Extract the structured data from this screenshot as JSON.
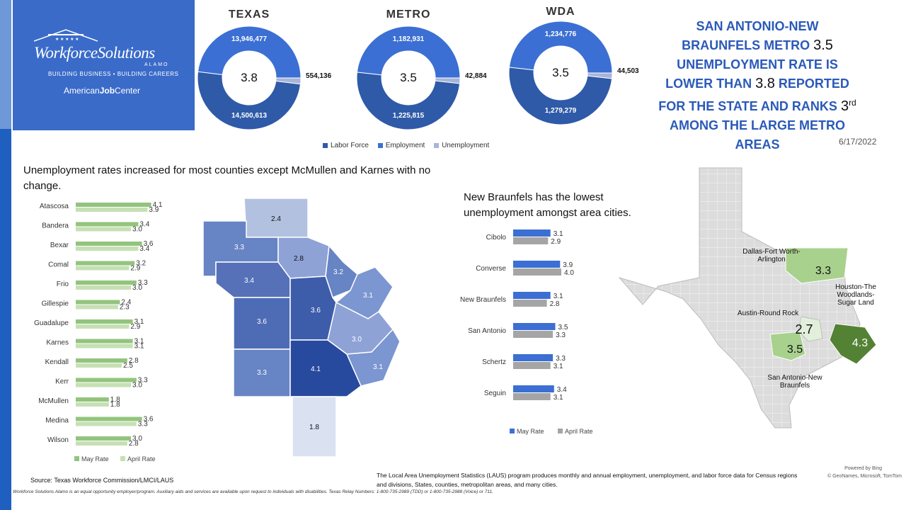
{
  "logo": {
    "name": "WorkforceSolutions",
    "sub": "ALAMO",
    "tagline": "BUILDING BUSINESS • BUILDING CAREERS",
    "ajc_prefix": "American",
    "ajc_bold": "Job",
    "ajc_suffix": "Center"
  },
  "donuts": {
    "legend": [
      "Labor Force",
      "Employment",
      "Unemployment"
    ],
    "colors": {
      "labor_force": "#2e5aa8",
      "employment": "#3b6fd3",
      "unemployment": "#a8b4d9"
    },
    "items": [
      {
        "title": "TEXAS",
        "rate": "3.8",
        "employment": "13,946,477",
        "labor_force": "14,500,613",
        "unemployment": "554,136"
      },
      {
        "title": "METRO",
        "rate": "3.5",
        "employment": "1,182,931",
        "labor_force": "1,225,815",
        "unemployment": "42,884"
      },
      {
        "title": "WDA",
        "rate": "3.5",
        "employment": "1,234,776",
        "labor_force": "1,279,279",
        "unemployment": "44,503"
      }
    ]
  },
  "headline": {
    "p1": "SAN ANTONIO-NEW BRAUNFELS METRO ",
    "v1": "3.5",
    "p2": " UNEMPLOYMENT RATE IS LOWER THAN ",
    "v2": "3.8",
    "p3": " REPORTED FOR THE STATE AND RANKS ",
    "rank": "3",
    "rank_sup": "rd",
    "p4": " AMONG THE LARGE METRO AREAS"
  },
  "date": "6/17/2022",
  "county_section": {
    "title": "Unemployment rates increased for most counties except McMullen and Karnes with no change."
  },
  "city_section": {
    "title": "New Braunfels has the lowest unemployment amongst area cities."
  },
  "source": "Source: Texas Workforce Commission/LMCI/LAUS",
  "footnote": "Workforce Solutions Alamo is an equal opportunity employer/program. Auxiliary aids and services are available upon request to individuals with disabilities. Texas Relay Numbers: 1-800-735-2989 (TDD) or 1-800-735-2988 (Voice) or 711.",
  "laus_note": "The Local Area Unemployment Statistics (LAUS) program produces monthly and annual employment, unemployment, and labor force data for Census regions and divisions, States, counties, metropolitan areas, and many cities.",
  "map_credit": {
    "powered": "Powered by Bing",
    "copy": "© GeoNames, Microsoft, TomTom"
  },
  "county_map_values": {
    "gillespie": "2.4",
    "kerr": "3.3",
    "bandera": "3.4",
    "kendall": "2.8",
    "comal": "3.2",
    "guadalupe": "3.1",
    "bexar": "3.6",
    "medina": "3.6",
    "wilson": "3.0",
    "karnes": "3.1",
    "frio": "3.3",
    "atascosa": "4.1",
    "mcmullen": "1.8"
  },
  "texas_map": {
    "labels": {
      "dfw": "Dallas-Fort Worth-Arlington",
      "hou": "Houston-The Woodlands-Sugar Land",
      "aus": "Austin-Round Rock",
      "sa": "San Antonio-New Braunfels"
    },
    "values": {
      "dfw": "3.3",
      "hou": "4.3",
      "aus": "2.7",
      "sa": "3.5"
    }
  },
  "chart_data": [
    {
      "type": "bar",
      "orientation": "horizontal",
      "categories": [
        "Atascosa",
        "Bandera",
        "Bexar",
        "Comal",
        "Frio",
        "Gillespie",
        "Guadalupe",
        "Karnes",
        "Kendall",
        "Kerr",
        "McMullen",
        "Medina",
        "Wilson"
      ],
      "series": [
        {
          "name": "May Rate",
          "values": [
            4.1,
            3.4,
            3.6,
            3.2,
            3.3,
            2.4,
            3.1,
            3.1,
            2.8,
            3.3,
            1.8,
            3.6,
            3.0
          ],
          "color": "#93c47d"
        },
        {
          "name": "April Rate",
          "values": [
            3.9,
            3.0,
            3.4,
            2.9,
            3.0,
            2.3,
            2.9,
            3.1,
            2.5,
            3.0,
            1.8,
            3.3,
            2.8
          ],
          "color": "#c6e0b4"
        }
      ]
    },
    {
      "type": "bar",
      "orientation": "horizontal",
      "categories": [
        "Cibolo",
        "Converse",
        "New Braunfels",
        "San Antonio",
        "Schertz",
        "Seguin"
      ],
      "series": [
        {
          "name": "May Rate",
          "values": [
            3.1,
            3.9,
            3.1,
            3.5,
            3.3,
            3.4
          ],
          "color": "#3b6fd3"
        },
        {
          "name": "April Rate",
          "values": [
            2.9,
            4.0,
            2.8,
            3.3,
            3.1,
            3.1
          ],
          "color": "#a5a5a5"
        }
      ]
    }
  ]
}
